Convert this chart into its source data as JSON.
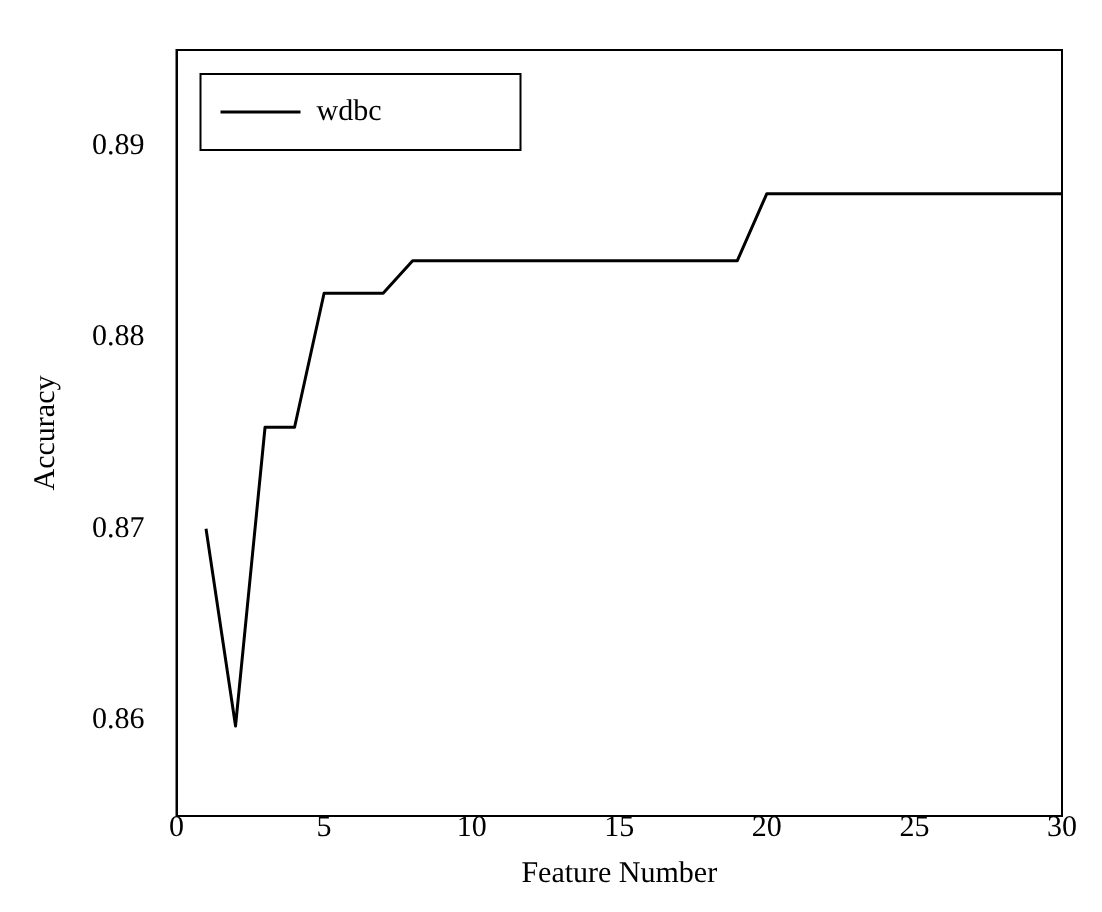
{
  "chart_data": {
    "type": "line",
    "xlabel": "Feature Number",
    "ylabel": "Accuracy",
    "x": [
      1,
      2,
      3,
      4,
      5,
      6,
      7,
      8,
      9,
      10,
      11,
      12,
      13,
      14,
      15,
      16,
      17,
      18,
      19,
      20,
      21,
      22,
      23,
      24,
      25,
      26,
      27,
      28,
      29,
      30
    ],
    "series": [
      {
        "name": "wdbc",
        "color": "#000000",
        "values": [
          0.87,
          0.8597,
          0.8753,
          0.8753,
          0.8823,
          0.8823,
          0.8823,
          0.884,
          0.884,
          0.884,
          0.884,
          0.884,
          0.884,
          0.884,
          0.884,
          0.884,
          0.884,
          0.884,
          0.884,
          0.8875,
          0.8875,
          0.8875,
          0.8875,
          0.8875,
          0.8875,
          0.8875,
          0.8875,
          0.8875,
          0.8875,
          0.8875
        ]
      }
    ],
    "xlim": [
      0,
      30
    ],
    "xticks": [
      0,
      5,
      10,
      15,
      20,
      25,
      30
    ],
    "ylim": [
      0.855,
      0.895
    ],
    "yticks": [
      0.86,
      0.87,
      0.88,
      0.89
    ],
    "grid": false,
    "legend": "top left",
    "marker": "none",
    "line_style": "solid"
  }
}
